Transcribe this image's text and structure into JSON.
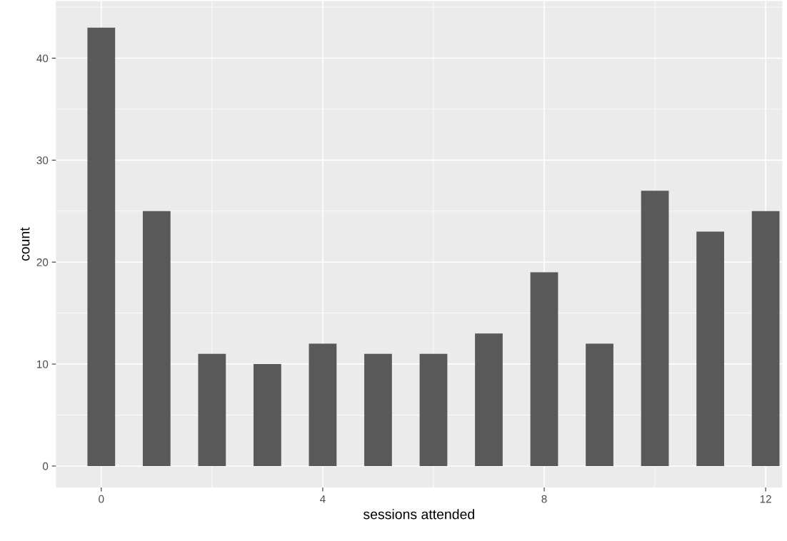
{
  "chart_data": {
    "type": "bar",
    "xlabel": "sessions attended",
    "ylabel": "count",
    "x": [
      0,
      1,
      2,
      3,
      4,
      5,
      6,
      7,
      8,
      9,
      10,
      11,
      12
    ],
    "values": [
      43,
      25,
      11,
      10,
      12,
      11,
      11,
      13,
      19,
      12,
      27,
      23,
      25
    ],
    "color": "#595959",
    "xlim": [
      -0.82,
      12.3
    ],
    "xticks": [
      0,
      4,
      8,
      12
    ],
    "ylim": [
      -2.1,
      45.6
    ],
    "yticks": [
      0,
      10,
      20,
      30,
      40
    ],
    "grid": true,
    "legend": false
  }
}
